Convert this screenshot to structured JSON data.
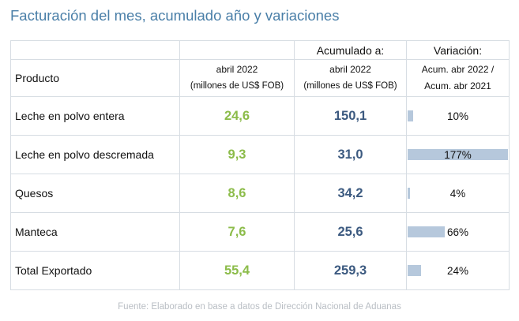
{
  "title": "Facturación del mes, acumulado año y variaciones",
  "header": {
    "acumulado_label": "Acumulado a:",
    "variacion_label": "Variación:",
    "producto_label": "Producto",
    "mes_line1": "abril 2022",
    "mes_line2": "(millones de US$ FOB)",
    "acum_line1": "abril 2022",
    "acum_line2": "(millones de US$ FOB)",
    "var_line1": "Acum. abr 2022 /",
    "var_line2": "Acum. abr 2021"
  },
  "rows": [
    {
      "producto": "Leche en polvo entera",
      "mes": "24,6",
      "acumulado": "150,1",
      "variacion": "10%",
      "variacion_value": 10
    },
    {
      "producto": "Leche en polvo descremada",
      "mes": "9,3",
      "acumulado": "31,0",
      "variacion": "177%",
      "variacion_value": 177
    },
    {
      "producto": "Quesos",
      "mes": "8,6",
      "acumulado": "34,2",
      "variacion": "4%",
      "variacion_value": 4
    },
    {
      "producto": "Manteca",
      "mes": "7,6",
      "acumulado": "25,6",
      "variacion": "66%",
      "variacion_value": 66
    },
    {
      "producto": "Total Exportado",
      "mes": "55,4",
      "acumulado": "259,3",
      "variacion": "24%",
      "variacion_value": 24
    }
  ],
  "colors": {
    "mes": "#8cbc4a",
    "acumulado": "#3c5a80",
    "bar": "#b6c8dc",
    "title": "#4a7fa8"
  },
  "footer": "Fuente: Elaborado en base a datos de Dirección Nacional de Aduanas"
}
